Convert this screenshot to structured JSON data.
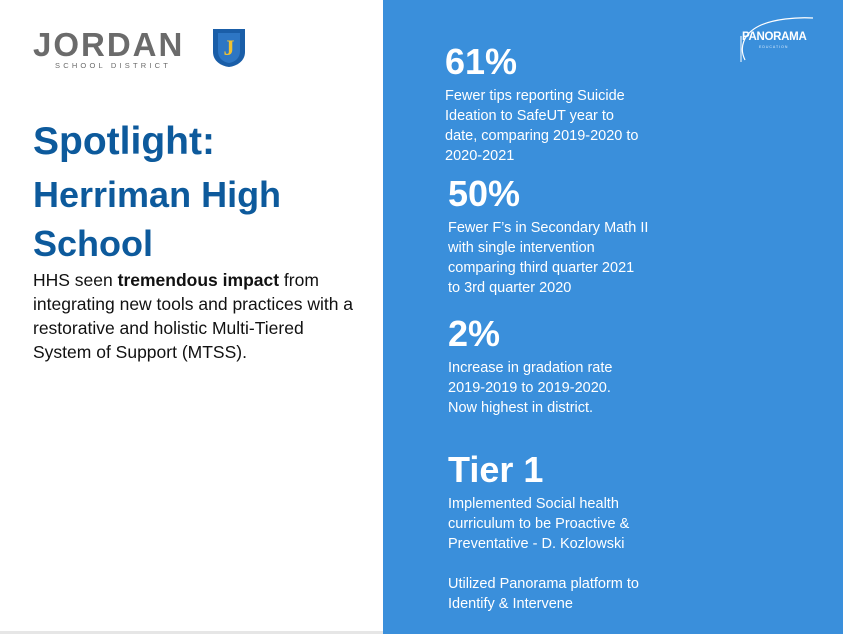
{
  "logo": {
    "wordmark": "JORDAN",
    "subtitle": "SCHOOL DISTRICT",
    "shield_letter": "J",
    "shield_color": "#1a5ea8"
  },
  "heading": {
    "line1": "Spotlight:",
    "line2": "Herriman High School"
  },
  "description": {
    "prefix": "HHS seen ",
    "bold": "tremendous impact",
    "suffix": " from integrating new tools and practices with a restorative and holistic Multi-Tiered System of Support (MTSS)."
  },
  "brand": {
    "name": "PANORAMA",
    "tagline": "EDUCATION"
  },
  "stats": [
    {
      "value": "61%",
      "text": "Fewer tips reporting Suicide\nIdeation to SafeUT year to\ndate, comparing 2019-2020 to\n2020-2021"
    },
    {
      "value": "50%",
      "text": "Fewer F’s in Secondary Math II\nwith single intervention\ncomparing  third quarter 2021\nto 3rd quarter 2020"
    },
    {
      "value": "2%",
      "text": "Increase in gradation rate\n2019-2019 to 2019-2020.\nNow highest in district."
    },
    {
      "value": "Tier 1",
      "text": "Implemented Social health\ncurriculum to be Proactive &\nPreventative - D. Kozlowski",
      "text2": "Utilized Panorama platform to\nIdentify & Intervene"
    }
  ],
  "colors": {
    "panel": "#3a8fdb",
    "heading": "#0d5a9c"
  }
}
